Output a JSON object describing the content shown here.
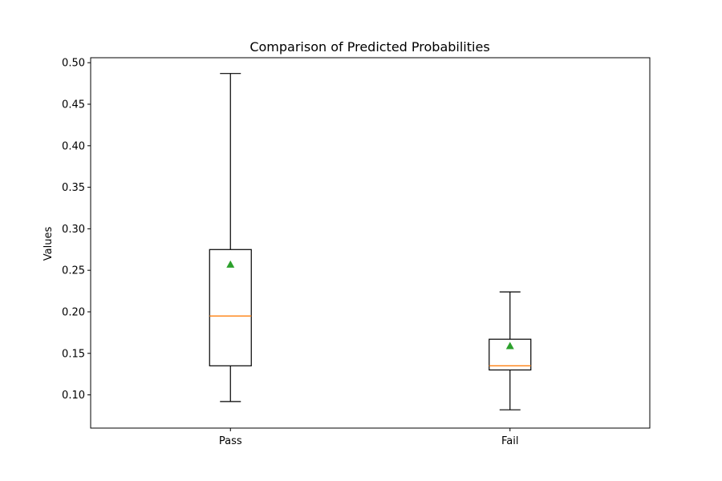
{
  "chart_data": {
    "type": "box",
    "title": "Comparison of Predicted Probabilities",
    "xlabel": "",
    "ylabel": "Values",
    "ylim": [
      0.06,
      0.506
    ],
    "yticks": [
      "0.10",
      "0.15",
      "0.20",
      "0.25",
      "0.30",
      "0.35",
      "0.40",
      "0.45",
      "0.50"
    ],
    "grid": false,
    "categories": [
      "Pass",
      "Fail"
    ],
    "boxes": [
      {
        "category": "Pass",
        "whisker_low": 0.092,
        "q1": 0.135,
        "median": 0.195,
        "q3": 0.275,
        "whisker_high": 0.487,
        "mean": 0.257
      },
      {
        "category": "Fail",
        "whisker_low": 0.082,
        "q1": 0.13,
        "median": 0.135,
        "q3": 0.167,
        "whisker_high": 0.224,
        "mean": 0.159
      }
    ],
    "colors": {
      "box": "#000000",
      "median": "#ff7f0e",
      "mean": "#2ca02c"
    }
  }
}
